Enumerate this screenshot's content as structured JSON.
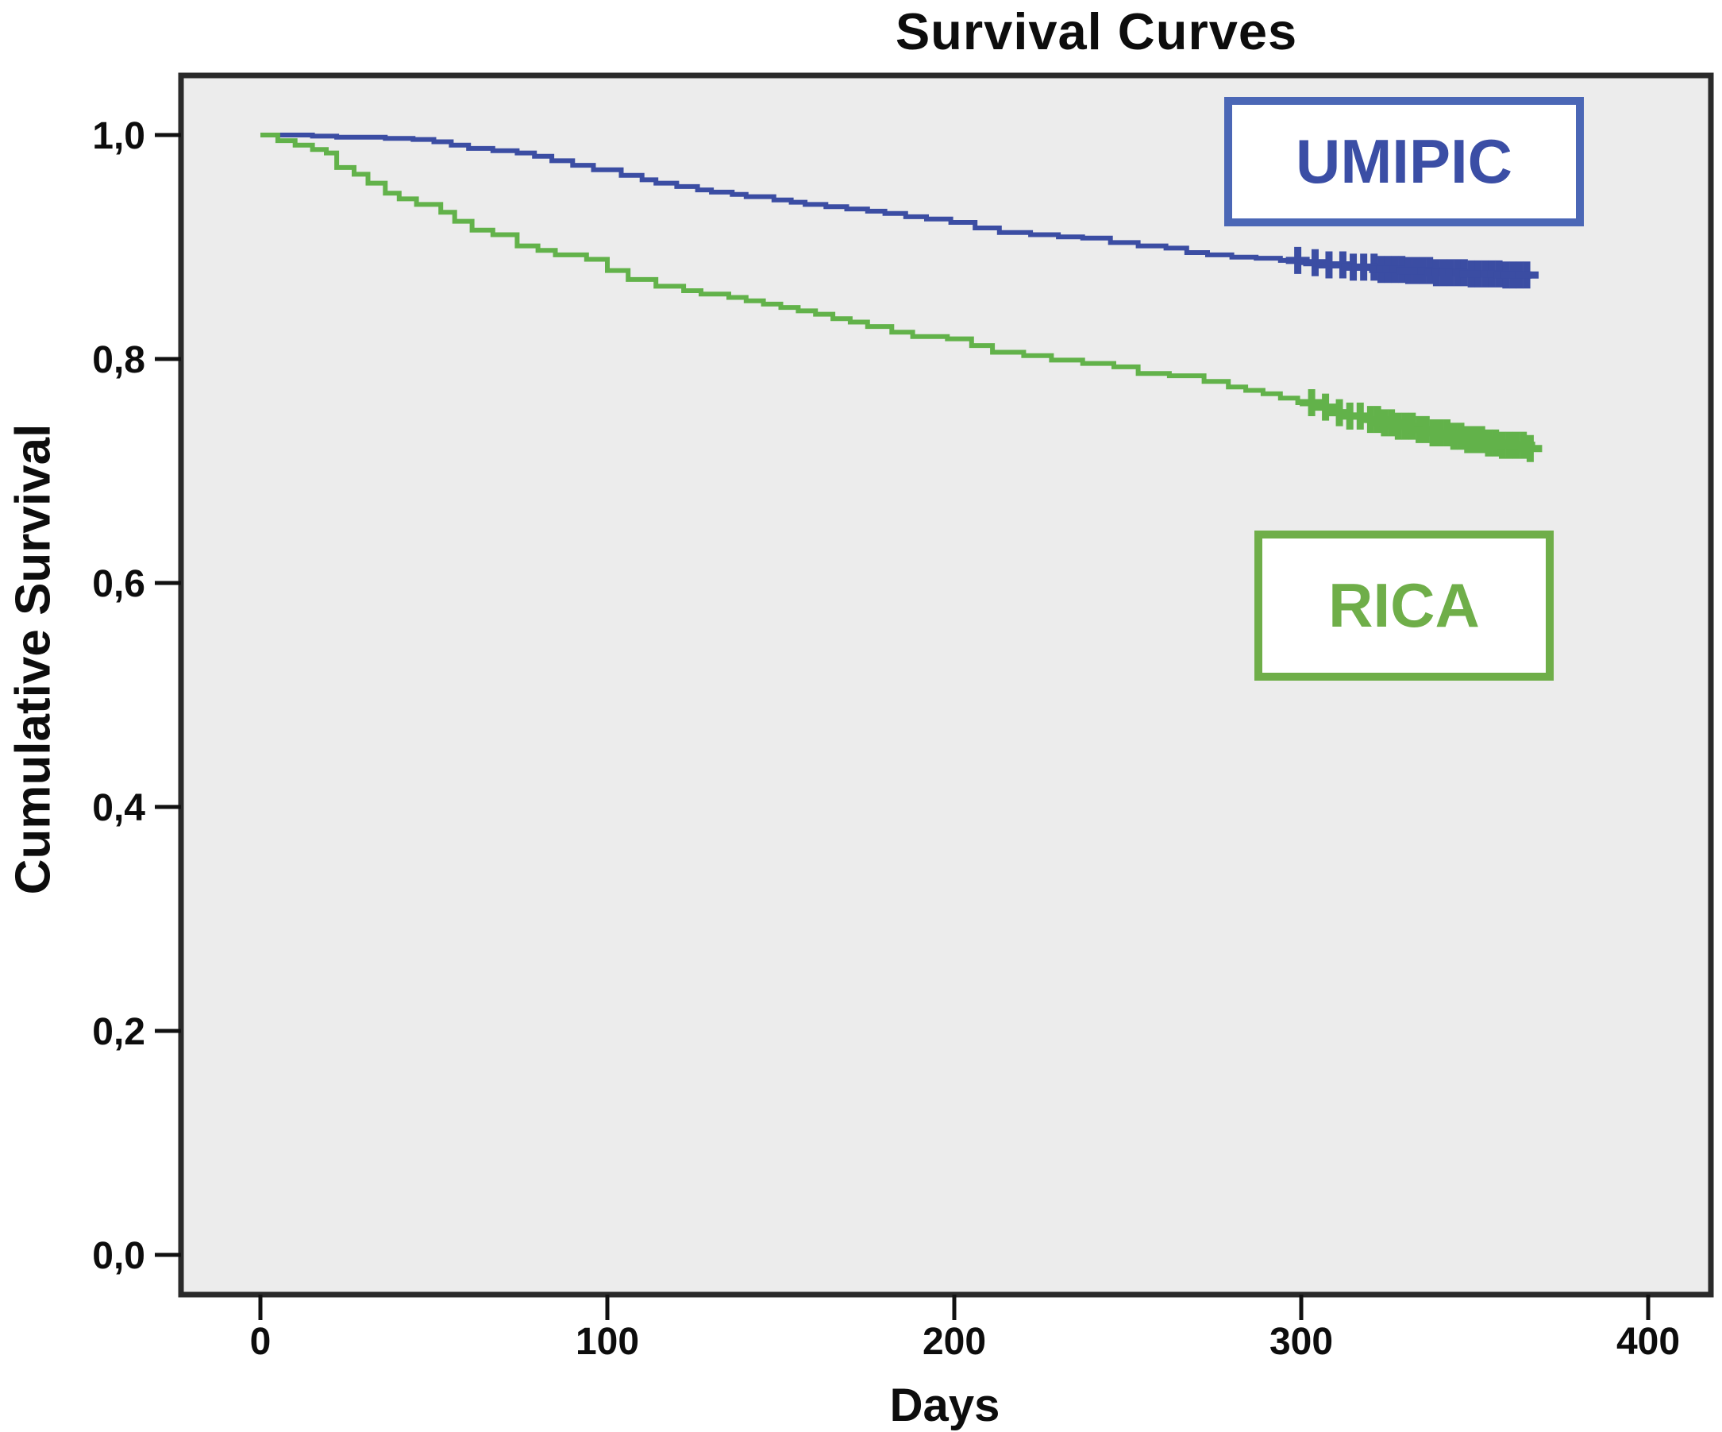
{
  "chart_data": {
    "type": "line",
    "subtype": "kaplan-meier-step-survival",
    "title": "Survival Curves",
    "xlabel": "Days",
    "ylabel": "Cumulative Survival",
    "xlim": [
      -19,
      419
    ],
    "ylim": [
      -0.04,
      1.06
    ],
    "grid": false,
    "plot_background": "#ececec",
    "frame_color": "#2a2a2a",
    "tick_color": "#111111",
    "x_ticks": [
      {
        "value": 0,
        "label": "0"
      },
      {
        "value": 100,
        "label": "100"
      },
      {
        "value": 200,
        "label": "200"
      },
      {
        "value": 300,
        "label": "300"
      },
      {
        "value": 400,
        "label": "400"
      }
    ],
    "y_ticks": [
      {
        "value": 0.0,
        "label": "0,0"
      },
      {
        "value": 0.2,
        "label": "0,2"
      },
      {
        "value": 0.4,
        "label": "0,4"
      },
      {
        "value": 0.6,
        "label": "0,6"
      },
      {
        "value": 0.8,
        "label": "0,8"
      },
      {
        "value": 1.0,
        "label": "1,0"
      }
    ],
    "legend": [
      {
        "name": "UMIPIC",
        "text_color": "#3b4ea5",
        "border_color": "#4b67b6",
        "position": "inside-top-right"
      },
      {
        "name": "RICA",
        "text_color": "#6fae49",
        "border_color": "#6fae49",
        "position": "inside-middle-right"
      }
    ],
    "series": [
      {
        "name": "UMIPIC",
        "color": "#3b4da3",
        "step": true,
        "points": [
          [
            0,
            1.0
          ],
          [
            15,
            0.999
          ],
          [
            22,
            0.998
          ],
          [
            36,
            0.997
          ],
          [
            44,
            0.996
          ],
          [
            50,
            0.994
          ],
          [
            55,
            0.991
          ],
          [
            60,
            0.988
          ],
          [
            67,
            0.986
          ],
          [
            74,
            0.984
          ],
          [
            79,
            0.981
          ],
          [
            84,
            0.977
          ],
          [
            90,
            0.973
          ],
          [
            96,
            0.969
          ],
          [
            104,
            0.964
          ],
          [
            110,
            0.96
          ],
          [
            114,
            0.957
          ],
          [
            120,
            0.954
          ],
          [
            126,
            0.951
          ],
          [
            130,
            0.949
          ],
          [
            136,
            0.947
          ],
          [
            140,
            0.945
          ],
          [
            148,
            0.942
          ],
          [
            153,
            0.94
          ],
          [
            157,
            0.938
          ],
          [
            163,
            0.936
          ],
          [
            169,
            0.934
          ],
          [
            175,
            0.932
          ],
          [
            180,
            0.93
          ],
          [
            186,
            0.927
          ],
          [
            192,
            0.925
          ],
          [
            199,
            0.922
          ],
          [
            206,
            0.917
          ],
          [
            213,
            0.913
          ],
          [
            222,
            0.911
          ],
          [
            230,
            0.909
          ],
          [
            237,
            0.908
          ],
          [
            245,
            0.904
          ],
          [
            253,
            0.901
          ],
          [
            261,
            0.899
          ],
          [
            267,
            0.895
          ],
          [
            273,
            0.893
          ],
          [
            280,
            0.891
          ],
          [
            287,
            0.89
          ],
          [
            294,
            0.888
          ],
          [
            300,
            0.886
          ],
          [
            308,
            0.884
          ],
          [
            315,
            0.882
          ],
          [
            322,
            0.88
          ],
          [
            330,
            0.879
          ],
          [
            338,
            0.877
          ],
          [
            348,
            0.876
          ],
          [
            358,
            0.875
          ],
          [
            367,
            0.874
          ]
        ],
        "end_day": 367,
        "censor_days": [
          299,
          304,
          308,
          312,
          315,
          318,
          321,
          323,
          325,
          327,
          329,
          331,
          333,
          335,
          337,
          339,
          341,
          343,
          345,
          347,
          349,
          351,
          353,
          355,
          357,
          359,
          361,
          363,
          365
        ]
      },
      {
        "name": "RICA",
        "color": "#62b24a",
        "step": true,
        "points": [
          [
            0,
            1.0
          ],
          [
            5,
            0.995
          ],
          [
            10,
            0.991
          ],
          [
            15,
            0.987
          ],
          [
            19,
            0.984
          ],
          [
            22,
            0.971
          ],
          [
            27,
            0.965
          ],
          [
            31,
            0.957
          ],
          [
            36,
            0.948
          ],
          [
            40,
            0.943
          ],
          [
            45,
            0.938
          ],
          [
            52,
            0.931
          ],
          [
            56,
            0.923
          ],
          [
            61,
            0.915
          ],
          [
            67,
            0.911
          ],
          [
            74,
            0.901
          ],
          [
            80,
            0.897
          ],
          [
            85,
            0.893
          ],
          [
            94,
            0.889
          ],
          [
            100,
            0.879
          ],
          [
            106,
            0.871
          ],
          [
            114,
            0.865
          ],
          [
            122,
            0.861
          ],
          [
            127,
            0.858
          ],
          [
            135,
            0.855
          ],
          [
            140,
            0.852
          ],
          [
            145,
            0.849
          ],
          [
            150,
            0.846
          ],
          [
            155,
            0.843
          ],
          [
            160,
            0.84
          ],
          [
            165,
            0.836
          ],
          [
            170,
            0.833
          ],
          [
            175,
            0.829
          ],
          [
            182,
            0.824
          ],
          [
            188,
            0.82
          ],
          [
            198,
            0.818
          ],
          [
            205,
            0.812
          ],
          [
            211,
            0.806
          ],
          [
            220,
            0.803
          ],
          [
            228,
            0.799
          ],
          [
            237,
            0.796
          ],
          [
            246,
            0.793
          ],
          [
            253,
            0.787
          ],
          [
            262,
            0.785
          ],
          [
            272,
            0.78
          ],
          [
            279,
            0.775
          ],
          [
            284,
            0.772
          ],
          [
            289,
            0.769
          ],
          [
            294,
            0.765
          ],
          [
            299,
            0.761
          ],
          [
            304,
            0.757
          ],
          [
            308,
            0.752
          ],
          [
            313,
            0.749
          ],
          [
            318,
            0.746
          ],
          [
            323,
            0.743
          ],
          [
            328,
            0.74
          ],
          [
            333,
            0.737
          ],
          [
            338,
            0.734
          ],
          [
            343,
            0.731
          ],
          [
            348,
            0.728
          ],
          [
            353,
            0.725
          ],
          [
            358,
            0.723
          ],
          [
            366,
            0.72
          ]
        ],
        "end_day": 366,
        "censor_days": [
          303,
          307,
          311,
          314,
          317,
          320,
          322,
          324,
          326,
          328,
          330,
          332,
          334,
          336,
          338,
          340,
          342,
          344,
          346,
          348,
          350,
          352,
          354,
          356,
          358,
          360,
          362,
          364,
          366
        ]
      }
    ]
  }
}
